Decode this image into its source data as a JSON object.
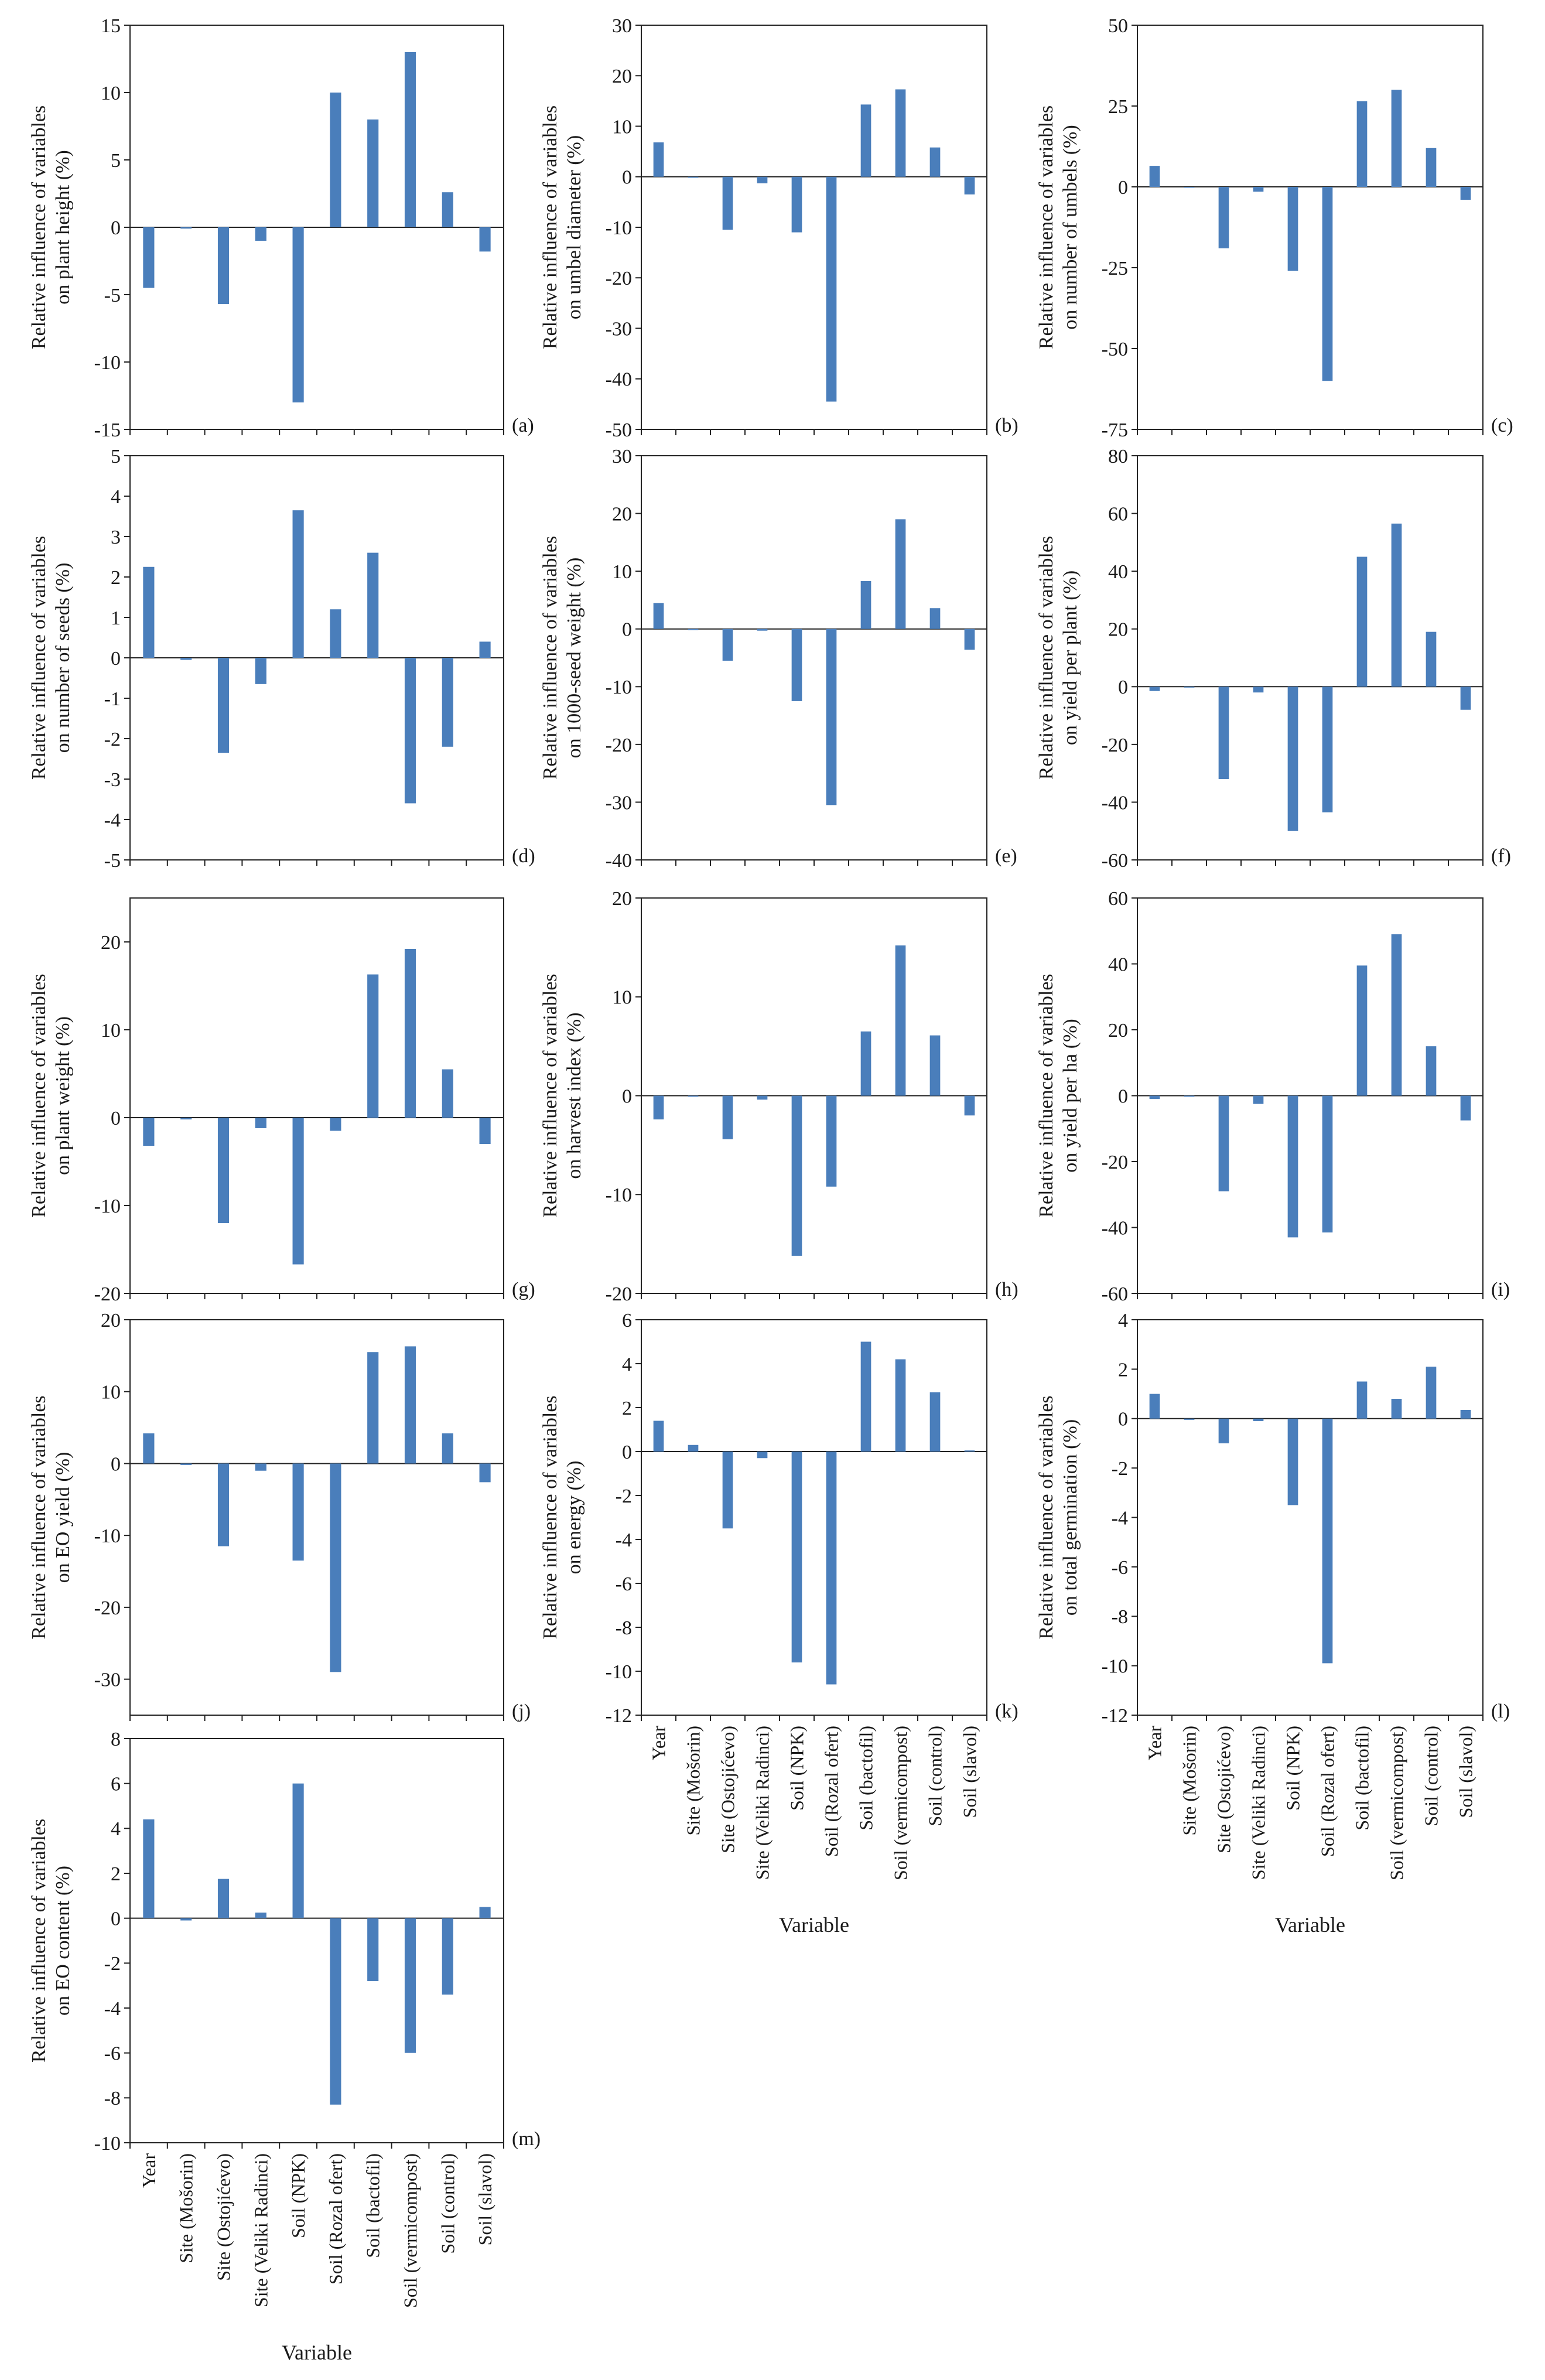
{
  "figure": {
    "bar_color": "#4a7ebb",
    "axis_color": "#222222",
    "xlabel": "Variable",
    "categories": [
      "Year",
      "Site (Mošorin)",
      "Site (Ostojićevo)",
      "Site (Veliki Radinci)",
      "Soil (NPK)",
      "Soil (Rozal ofert)",
      "Soil (bactofil)",
      "Soil (vermicompost)",
      "Soil (control)",
      "Soil (slavol)"
    ]
  },
  "chart_data": [
    {
      "id": "a",
      "panel_label": "(a)",
      "type": "bar",
      "ylabel": [
        "Relative influence of variables",
        "on plant height (%)"
      ],
      "ylim": [
        -15,
        15
      ],
      "yticks": [
        -15,
        -10,
        -5,
        0,
        5,
        10,
        15
      ],
      "values": [
        -4.5,
        -0.1,
        -5.7,
        -1.0,
        -13.0,
        10.0,
        8.0,
        13.0,
        2.6,
        -1.8
      ]
    },
    {
      "id": "b",
      "panel_label": "(b)",
      "type": "bar",
      "ylabel": [
        "Relative influence of variables",
        "on umbel diameter (%)"
      ],
      "ylim": [
        -50,
        30
      ],
      "yticks": [
        -50,
        -40,
        -30,
        -20,
        -10,
        0,
        10,
        20,
        30
      ],
      "values": [
        6.8,
        -0.2,
        -10.5,
        -1.3,
        -11.0,
        -44.5,
        14.3,
        17.3,
        5.8,
        -3.5
      ]
    },
    {
      "id": "c",
      "panel_label": "(c)",
      "type": "bar",
      "ylabel": [
        "Relative influence of variables",
        "on number of umbels (%)"
      ],
      "ylim": [
        -75,
        50
      ],
      "yticks": [
        -75,
        -50,
        -25,
        0,
        25,
        50
      ],
      "values": [
        6.5,
        -0.2,
        -19.0,
        -1.5,
        -26.0,
        -60.0,
        26.5,
        30.0,
        12.0,
        -4.0
      ]
    },
    {
      "id": "d",
      "panel_label": "(d)",
      "type": "bar",
      "ylabel": [
        "Relative influence of variables",
        "on number of seeds (%)"
      ],
      "ylim": [
        -5,
        5
      ],
      "yticks": [
        -5,
        -4,
        -3,
        -2,
        -1,
        0,
        1,
        2,
        3,
        4,
        5
      ],
      "values": [
        2.25,
        -0.05,
        -2.35,
        -0.65,
        3.65,
        1.2,
        2.6,
        -3.6,
        -2.2,
        0.4
      ]
    },
    {
      "id": "e",
      "panel_label": "(e)",
      "type": "bar",
      "ylabel": [
        "Relative influence of variables",
        "on 1000-seed weight (%)"
      ],
      "ylim": [
        -40,
        30
      ],
      "yticks": [
        -40,
        -30,
        -20,
        -10,
        0,
        10,
        20,
        30
      ],
      "values": [
        4.5,
        -0.2,
        -5.5,
        -0.3,
        -12.5,
        -30.5,
        8.3,
        19.0,
        3.6,
        -3.6
      ]
    },
    {
      "id": "f",
      "panel_label": "(f)",
      "type": "bar",
      "ylabel": [
        "Relative influence of variables",
        "on yield per plant (%)"
      ],
      "ylim": [
        -60,
        80
      ],
      "yticks": [
        -60,
        -40,
        -20,
        0,
        20,
        40,
        60,
        80
      ],
      "values": [
        -1.5,
        -0.2,
        -32.0,
        -2.0,
        -50.0,
        -43.5,
        45.0,
        56.5,
        19.0,
        -8.0
      ]
    },
    {
      "id": "g",
      "panel_label": "(g)",
      "type": "bar",
      "ylabel": [
        "Relative influence of variables",
        "on plant weight (%)"
      ],
      "ylim": [
        -20,
        25
      ],
      "yticks": [
        -20,
        -10,
        0,
        10,
        20
      ],
      "values": [
        -3.2,
        -0.2,
        -12.0,
        -1.2,
        -16.7,
        -1.5,
        16.3,
        19.2,
        5.5,
        -3.0
      ]
    },
    {
      "id": "h",
      "panel_label": "(h)",
      "type": "bar",
      "ylabel": [
        "Relative influence of variables",
        "on harvest index (%)"
      ],
      "ylim": [
        -20,
        20
      ],
      "yticks": [
        -20,
        -10,
        0,
        10,
        20
      ],
      "values": [
        -2.4,
        -0.1,
        -4.4,
        -0.4,
        -16.2,
        -9.2,
        6.5,
        15.2,
        6.1,
        -2.0
      ]
    },
    {
      "id": "i",
      "panel_label": "(i)",
      "type": "bar",
      "ylabel": [
        "Relative influence of variables",
        "on yield per ha (%)"
      ],
      "ylim": [
        -60,
        60
      ],
      "yticks": [
        -60,
        -40,
        -20,
        0,
        20,
        40,
        60
      ],
      "values": [
        -1.0,
        -0.3,
        -29.0,
        -2.5,
        -43.0,
        -41.5,
        39.5,
        49.0,
        15.0,
        -7.5
      ]
    },
    {
      "id": "j",
      "panel_label": "(j)",
      "type": "bar",
      "ylabel": [
        "Relative influence of variables",
        "on EO yield (%)"
      ],
      "ylim": [
        -35,
        20
      ],
      "yticks": [
        -30,
        -20,
        -10,
        0,
        10,
        20
      ],
      "values": [
        4.2,
        -0.2,
        -11.5,
        -1.0,
        -13.5,
        -29.0,
        15.5,
        16.3,
        4.2,
        -2.6
      ]
    },
    {
      "id": "k",
      "panel_label": "(k)",
      "type": "bar",
      "ylabel": [
        "Relative influence of variables",
        "on energy (%)"
      ],
      "ylim": [
        -12,
        6
      ],
      "yticks": [
        -12,
        -10,
        -8,
        -6,
        -4,
        -2,
        0,
        2,
        4,
        6
      ],
      "values": [
        1.4,
        0.3,
        -3.5,
        -0.3,
        -9.6,
        -10.6,
        5.0,
        4.2,
        2.7,
        0.05
      ]
    },
    {
      "id": "l",
      "panel_label": "(l)",
      "type": "bar",
      "ylabel": [
        "Relative influence of variables",
        "on total germination (%)"
      ],
      "ylim": [
        -12,
        4
      ],
      "yticks": [
        -12,
        -10,
        -8,
        -6,
        -4,
        -2,
        0,
        2,
        4
      ],
      "values": [
        1.0,
        -0.05,
        -1.0,
        -0.1,
        -3.5,
        -9.9,
        1.5,
        0.8,
        2.1,
        0.35
      ]
    },
    {
      "id": "m",
      "panel_label": "(m)",
      "type": "bar",
      "ylabel": [
        "Relative influence of variables",
        "on EO content (%)"
      ],
      "ylim": [
        -10,
        8
      ],
      "yticks": [
        -10,
        -8,
        -6,
        -4,
        -2,
        0,
        2,
        4,
        6,
        8
      ],
      "values": [
        4.4,
        -0.1,
        1.75,
        0.25,
        6.0,
        -8.3,
        -2.8,
        -6.0,
        -3.4,
        0.5
      ]
    }
  ]
}
